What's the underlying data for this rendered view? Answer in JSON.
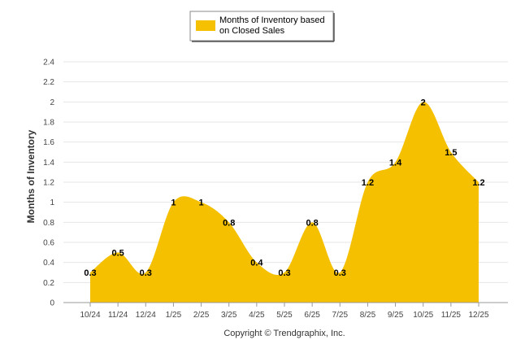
{
  "chart_data": {
    "type": "area",
    "title": "",
    "xlabel": "",
    "ylabel": "Months of Inventory",
    "ylim": [
      0,
      2.4
    ],
    "yticks": [
      0,
      0.2,
      0.4,
      0.6,
      0.8,
      1,
      1.2,
      1.4,
      1.6,
      1.8,
      2,
      2.2,
      2.4
    ],
    "categories": [
      "10/24",
      "11/24",
      "12/24",
      "1/25",
      "2/25",
      "3/25",
      "4/25",
      "5/25",
      "6/25",
      "7/25",
      "8/25",
      "9/25",
      "10/25",
      "11/25",
      "12/25"
    ],
    "series": [
      {
        "name": "Months of Inventory based on Closed Sales",
        "legend_lines": [
          "Months of Inventory based",
          "on Closed Sales"
        ],
        "color": "#F5C000",
        "values": [
          0.3,
          0.5,
          0.3,
          1,
          1,
          0.8,
          0.4,
          0.3,
          0.8,
          0.3,
          1.2,
          1.4,
          2,
          1.5,
          1.2
        ],
        "labels": [
          "0.3",
          "0.5",
          "0.3",
          "1",
          "1",
          "0.8",
          "0.4",
          "0.3",
          "0.8",
          "0.3",
          "1.2",
          "1.4",
          "2",
          "1.5",
          "1.2"
        ]
      }
    ],
    "grid": true,
    "legend_position": "top-center"
  },
  "footer": {
    "copyright": "Copyright © Trendgraphix, Inc."
  }
}
